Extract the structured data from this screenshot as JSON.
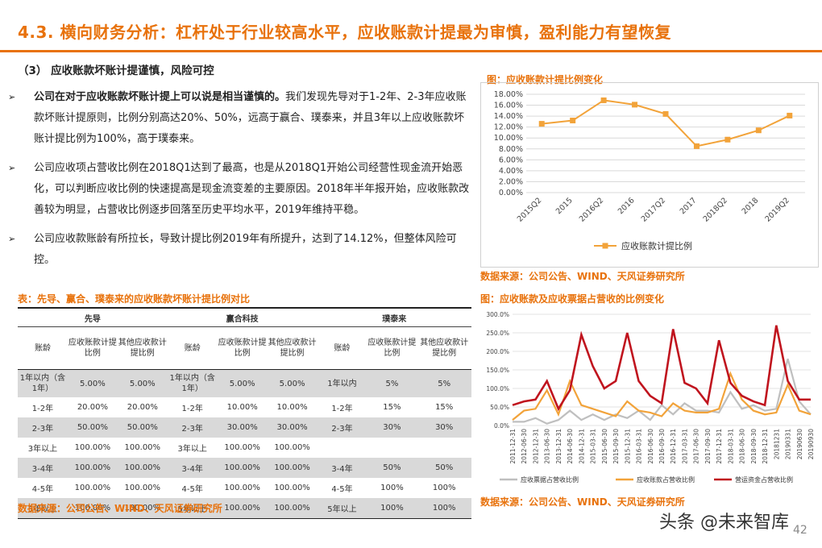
{
  "title": "4.3. 横向财务分析：杠杆处于行业较高水平，应收账款计提最为审慎，盈利能力有望恢复",
  "section": "（3） 应收账款坏账计提谨慎，风险可控",
  "bullets": [
    {
      "bold": "公司在对于应收账款坏账计提上可以说是相当谨慎的。",
      "text": "我们发现先导对于1-2年、2-3年应收账款坏账计提原则，比例分别高达20%、50%，远高于赢合、璞泰来，并且3年以上应收账款坏账计提比例为100%，高于璞泰来。"
    },
    {
      "bold": "",
      "text": "公司应收项占营收比例在2018Q1达到了最高，也是从2018Q1开始公司经营性现金流开始恶化，可以判断应收比例的快速提高是现金流变差的主要原因。2018年半年报开始，应收账款改善较为明显，占营收比例逐步回落至历史平均水平，2019年维持平稳。"
    },
    {
      "bold": "",
      "text": "公司应收款账龄有所拉长，导致计提比例2019年有所提升，达到了14.12%，但整体风险可控。"
    }
  ],
  "table": {
    "caption": "表：先导、赢合、璞泰来的应收账款坏账计提比例对比",
    "companies": [
      "先导",
      "赢合科技",
      "璞泰来"
    ],
    "subheaders": [
      "账龄",
      "应收账款计提比例",
      "其他应收款计提比例",
      "账龄",
      "应收账款计提比例",
      "其他应收款计提比例",
      "账龄",
      "应收账款计提比例",
      "其他应收款计提比例"
    ],
    "rows": [
      [
        "1年以内（含1年）",
        "5.00%",
        "5.00%",
        "1年以内（含1年）",
        "5.00%",
        "5.00%",
        "1年以内",
        "5%",
        "5%"
      ],
      [
        "1-2年",
        "20.00%",
        "20.00%",
        "1-2年",
        "10.00%",
        "10.00%",
        "1-2年",
        "15%",
        "15%"
      ],
      [
        "2-3年",
        "50.00%",
        "50.00%",
        "2-3年",
        "30.00%",
        "30.00%",
        "2-3年",
        "30%",
        "30%"
      ],
      [
        "3年以上",
        "100.00%",
        "100.00%",
        "3年以上",
        "100.00%",
        "100.00%",
        "",
        "",
        ""
      ],
      [
        "3-4年",
        "100.00%",
        "100.00%",
        "3-4年",
        "100.00%",
        "100.00%",
        "3-4年",
        "50%",
        "50%"
      ],
      [
        "4-5年",
        "100.00%",
        "100.00%",
        "4-5年",
        "100.00%",
        "100.00%",
        "4-5年",
        "100%",
        "100%"
      ],
      [
        "5年以上",
        "100.00%",
        "100.00%",
        "5年以上",
        "100.00%",
        "100.00%",
        "5年以上",
        "100%",
        "100%"
      ]
    ],
    "source": "数据来源：公司公告、WIND、天风证券研究所"
  },
  "chart1_caption": "图：应收账款计提比例变化",
  "chart1_source": "数据来源：公司公告、WIND、天风证券研究所",
  "chart2_caption": "图：应收账款及应收票据占营收的比例变化",
  "chart2_source": "数据来源：公司公告、WIND、天风证券研究所",
  "colors": {
    "accent": "#e8720c",
    "orange_line": "#f2a33a",
    "gray_line": "#bfbfbf",
    "red_line": "#c0141e"
  },
  "watermark": "头条 @未来智库",
  "page_number": "42",
  "chart_data": [
    {
      "type": "line",
      "categories": [
        "2015Q2",
        "2015",
        "2016Q2",
        "2016",
        "2017Q2",
        "2017",
        "2018Q2",
        "2018",
        "2019Q2"
      ],
      "series": [
        {
          "name": "应收账款计提比例",
          "values": [
            12.6,
            13.2,
            16.9,
            16.1,
            14.4,
            8.5,
            9.7,
            11.4,
            14.1
          ]
        }
      ],
      "ylim": [
        0,
        18
      ],
      "yticks": [
        "0.00%",
        "2.00%",
        "4.00%",
        "6.00%",
        "8.00%",
        "10.00%",
        "12.00%",
        "14.00%",
        "16.00%",
        "18.00%"
      ],
      "grid": true,
      "legend": "bottom"
    },
    {
      "type": "line",
      "categories": [
        "2011-12-31",
        "2012-06-30",
        "2012-12-31",
        "2013-06-30",
        "2013-12-31",
        "2014-06-30",
        "2014-12-31",
        "2015-03-31",
        "2015-06-30",
        "2015-09-30",
        "2015-12-31",
        "2016-03-31",
        "2016-06-30",
        "2016-09-30",
        "2016-12-31",
        "2017-03-31",
        "2017-06-30",
        "2017-09-30",
        "2017-12-31",
        "2018-03-31",
        "2018-06-30",
        "2018-09-30",
        "2018-12-31",
        "20181231",
        "20190331",
        "20190630",
        "20190930"
      ],
      "series": [
        {
          "name": "应收票据占营收比例",
          "values": [
            10,
            10,
            20,
            5,
            15,
            40,
            15,
            30,
            15,
            30,
            20,
            40,
            15,
            55,
            30,
            60,
            40,
            40,
            35,
            90,
            45,
            55,
            40,
            45,
            180,
            65,
            30
          ]
        },
        {
          "name": "应收账款占营收比例",
          "values": [
            15,
            40,
            45,
            95,
            30,
            120,
            55,
            45,
            35,
            25,
            65,
            40,
            35,
            25,
            60,
            40,
            35,
            35,
            45,
            140,
            70,
            40,
            30,
            35,
            110,
            40,
            30
          ]
        },
        {
          "name": "营运资金占营收比例",
          "values": [
            55,
            65,
            70,
            120,
            45,
            95,
            245,
            160,
            100,
            120,
            250,
            120,
            80,
            60,
            260,
            115,
            100,
            60,
            230,
            115,
            80,
            65,
            55,
            270,
            120,
            70,
            70
          ]
        }
      ],
      "ylim": [
        0,
        300
      ],
      "yticks": [
        "0.0%",
        "50.0%",
        "100.0%",
        "150.0%",
        "200.0%",
        "250.0%",
        "300.0%"
      ],
      "grid": true,
      "legend": "bottom"
    }
  ]
}
